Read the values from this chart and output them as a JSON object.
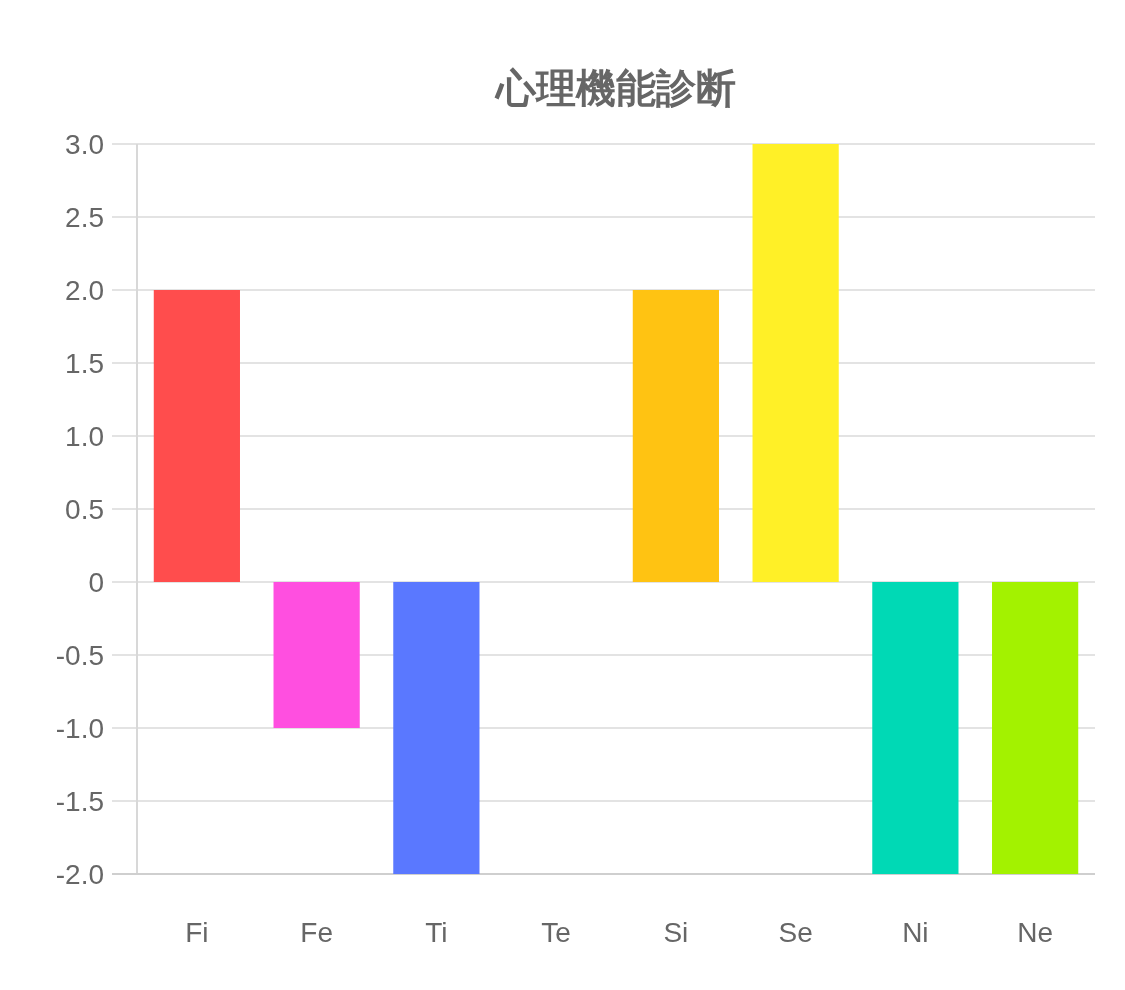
{
  "chart_data": {
    "type": "bar",
    "title": "心理機能診断",
    "categories": [
      "Fi",
      "Fe",
      "Ti",
      "Te",
      "Si",
      "Se",
      "Ni",
      "Ne"
    ],
    "values": [
      2,
      -1,
      -2,
      0,
      2,
      3,
      -2,
      -2
    ],
    "colors": [
      "#ff4d4d",
      "#ff4fe0",
      "#5a78ff",
      null,
      "#ffc312",
      "#fff027",
      "#00d9b5",
      "#a3f200"
    ],
    "ylim": [
      -2,
      3
    ],
    "yticks": [
      {
        "value": -2,
        "label": "-2.0"
      },
      {
        "value": -1.5,
        "label": "-1.5"
      },
      {
        "value": -1,
        "label": "-1.0"
      },
      {
        "value": -0.5,
        "label": "-0.5"
      },
      0,
      {
        "value": 0.5,
        "label": "0.5"
      },
      {
        "value": 1,
        "label": "1.0"
      },
      {
        "value": 1.5,
        "label": "1.5"
      },
      {
        "value": 2,
        "label": "2.0"
      },
      {
        "value": 2.5,
        "label": "2.5"
      },
      {
        "value": 3,
        "label": "3.0"
      }
    ],
    "grid": "y"
  }
}
